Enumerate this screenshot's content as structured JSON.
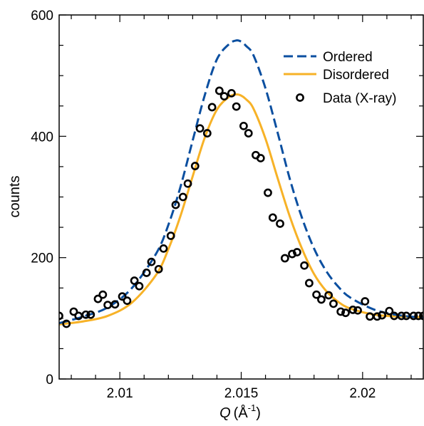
{
  "chart_data": {
    "type": "line",
    "title": "",
    "xlabel": {
      "symbol": "Q",
      "unit": "(Å",
      "exponent": "-1",
      "close": ")"
    },
    "ylabel": "counts",
    "xlim": [
      2.0075,
      2.0225
    ],
    "ylim": [
      0,
      600
    ],
    "xticks": [
      {
        "value": 2.01,
        "label": "2.01"
      },
      {
        "value": 2.015,
        "label": "2.015"
      },
      {
        "value": 2.02,
        "label": "2.02"
      }
    ],
    "yticks": [
      {
        "value": 0,
        "label": "0"
      },
      {
        "value": 200,
        "label": "200"
      },
      {
        "value": 400,
        "label": "400"
      },
      {
        "value": 600,
        "label": "600"
      }
    ],
    "grid": false,
    "legend_position": "top-right",
    "colors": {
      "ordered": "#0b4fa0",
      "disordered": "#f7b227",
      "data": "#000000"
    },
    "series": [
      {
        "name": "Ordered",
        "style": "dashed",
        "color": "#0b4fa0",
        "x": [
          2.0075,
          2.0085,
          2.0095,
          2.0105,
          2.0115,
          2.012,
          2.0125,
          2.013,
          2.0135,
          2.014,
          2.0145,
          2.0148,
          2.015,
          2.0152,
          2.0155,
          2.016,
          2.0165,
          2.017,
          2.0175,
          2.018,
          2.0185,
          2.019,
          2.0195,
          2.0205,
          2.0215,
          2.0225
        ],
        "y": [
          92,
          103,
          118,
          150,
          207,
          254,
          317,
          393,
          468,
          527,
          552,
          558,
          556,
          549,
          534,
          479,
          406,
          330,
          266,
          215,
          178,
          152,
          134,
          114,
          105,
          101
        ]
      },
      {
        "name": "Disordered",
        "style": "solid",
        "color": "#f7b227",
        "x": [
          2.0075,
          2.0085,
          2.0095,
          2.0105,
          2.0115,
          2.012,
          2.0125,
          2.013,
          2.0135,
          2.014,
          2.0145,
          2.0148,
          2.015,
          2.0152,
          2.0155,
          2.016,
          2.0165,
          2.017,
          2.0175,
          2.018,
          2.0185,
          2.019,
          2.0195,
          2.0205,
          2.0215,
          2.0225
        ],
        "y": [
          90,
          95,
          104,
          126,
          172,
          214,
          269,
          334,
          398,
          444,
          465,
          469,
          467,
          461,
          446,
          396,
          331,
          268,
          215,
          173,
          145,
          127,
          116,
          106,
          103,
          102
        ]
      },
      {
        "name": "Data (X-ray)",
        "style": "markers",
        "color": "#000000",
        "x": [
          2.0075,
          2.0078,
          2.0081,
          2.0083,
          2.0086,
          2.0088,
          2.0091,
          2.0093,
          2.0095,
          2.0098,
          2.0101,
          2.0103,
          2.0106,
          2.0108,
          2.0111,
          2.0113,
          2.0116,
          2.0118,
          2.0121,
          2.0123,
          2.0126,
          2.0128,
          2.0131,
          2.0133,
          2.0136,
          2.0138,
          2.0141,
          2.0143,
          2.0146,
          2.0148,
          2.0151,
          2.0153,
          2.0156,
          2.0158,
          2.0161,
          2.0163,
          2.0166,
          2.0168,
          2.0171,
          2.0173,
          2.0176,
          2.0178,
          2.0181,
          2.0183,
          2.0186,
          2.0188,
          2.0191,
          2.0193,
          2.0196,
          2.0198,
          2.0201,
          2.0203,
          2.0206,
          2.0208,
          2.0211,
          2.0213,
          2.0216,
          2.0218,
          2.0221,
          2.0223,
          2.0225
        ],
        "y": [
          104,
          91,
          111,
          104,
          106,
          106,
          132,
          139,
          122,
          123,
          136,
          129,
          162,
          153,
          175,
          193,
          181,
          215,
          236,
          287,
          300,
          322,
          351,
          413,
          405,
          448,
          475,
          466,
          471,
          449,
          417,
          405,
          369,
          364,
          307,
          266,
          256,
          199,
          206,
          209,
          187,
          158,
          139,
          131,
          138,
          124,
          111,
          109,
          114,
          113,
          128,
          103,
          103,
          105,
          112,
          104,
          104,
          104,
          104,
          104,
          104
        ]
      }
    ]
  }
}
